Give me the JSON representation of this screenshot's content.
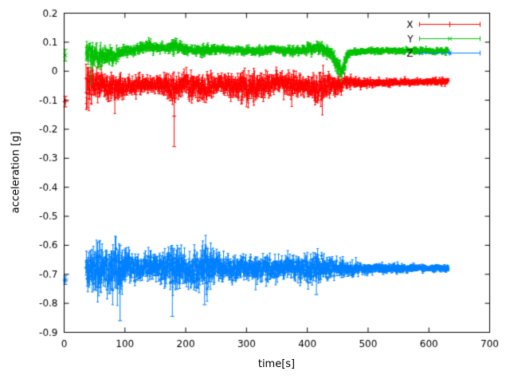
{
  "chart_data": {
    "type": "scatter",
    "style": "errorbars",
    "title": "",
    "xlabel": "time[s]",
    "ylabel": "acceleration [g]",
    "xlim": [
      0,
      700
    ],
    "ylim": [
      -0.9,
      0.2
    ],
    "xticks": [
      0,
      100,
      200,
      300,
      400,
      500,
      600,
      700
    ],
    "ytick_values": [
      -0.9,
      -0.8,
      -0.7,
      -0.6,
      -0.5,
      -0.4,
      -0.3,
      -0.2,
      -0.1,
      0,
      0.1,
      0.2
    ],
    "ytick_labels": [
      "-0.9",
      "-0.8",
      "-0.7",
      "-0.6",
      "-0.5",
      "-0.4",
      "-0.3",
      "-0.2",
      "-0.1",
      "0",
      "0.1",
      "0.2"
    ],
    "grid": false,
    "legend_position": "top-right",
    "series": [
      {
        "name": "X",
        "color": "#ff0000",
        "marker": "plus",
        "start_point": [
          2,
          -0.105,
          0.018
        ],
        "envelope": [
          [
            36,
            -0.055,
            0.075
          ],
          [
            48,
            -0.05,
            0.06
          ],
          [
            60,
            -0.048,
            0.05
          ],
          [
            75,
            -0.05,
            0.042
          ],
          [
            90,
            -0.05,
            0.05
          ],
          [
            105,
            -0.048,
            0.035
          ],
          [
            120,
            -0.05,
            0.032
          ],
          [
            135,
            -0.045,
            0.03
          ],
          [
            150,
            -0.042,
            0.032
          ],
          [
            165,
            -0.05,
            0.04
          ],
          [
            178,
            -0.06,
            0.055
          ],
          [
            186,
            -0.05,
            0.04
          ],
          [
            200,
            -0.048,
            0.045
          ],
          [
            215,
            -0.055,
            0.05
          ],
          [
            230,
            -0.06,
            0.05
          ],
          [
            245,
            -0.05,
            0.04
          ],
          [
            260,
            -0.042,
            0.03
          ],
          [
            275,
            -0.05,
            0.04
          ],
          [
            290,
            -0.058,
            0.048
          ],
          [
            305,
            -0.05,
            0.055
          ],
          [
            320,
            -0.055,
            0.05
          ],
          [
            335,
            -0.05,
            0.045
          ],
          [
            350,
            -0.04,
            0.035
          ],
          [
            365,
            -0.042,
            0.04
          ],
          [
            380,
            -0.045,
            0.05
          ],
          [
            395,
            -0.05,
            0.04
          ],
          [
            408,
            -0.055,
            0.045
          ],
          [
            418,
            -0.07,
            0.06
          ],
          [
            428,
            -0.05,
            0.05
          ],
          [
            440,
            -0.05,
            0.04
          ],
          [
            452,
            -0.048,
            0.035
          ],
          [
            462,
            -0.04,
            0.022
          ],
          [
            480,
            -0.04,
            0.018
          ],
          [
            510,
            -0.04,
            0.015
          ],
          [
            540,
            -0.038,
            0.013
          ],
          [
            570,
            -0.038,
            0.012
          ],
          [
            600,
            -0.036,
            0.012
          ],
          [
            632,
            -0.036,
            0.014
          ]
        ],
        "outliers": [
          [
            181,
            -0.26,
            -0.05
          ]
        ]
      },
      {
        "name": "Y",
        "color": "#00c000",
        "marker": "cross",
        "start_point": [
          2,
          0.055,
          0.02
        ],
        "envelope": [
          [
            36,
            0.065,
            0.05
          ],
          [
            45,
            0.055,
            0.045
          ],
          [
            55,
            0.05,
            0.04
          ],
          [
            65,
            0.055,
            0.035
          ],
          [
            75,
            0.05,
            0.032
          ],
          [
            85,
            0.055,
            0.03
          ],
          [
            95,
            0.065,
            0.022
          ],
          [
            110,
            0.072,
            0.018
          ],
          [
            125,
            0.08,
            0.018
          ],
          [
            140,
            0.085,
            0.02
          ],
          [
            155,
            0.082,
            0.018
          ],
          [
            170,
            0.08,
            0.016
          ],
          [
            182,
            0.088,
            0.026
          ],
          [
            195,
            0.078,
            0.016
          ],
          [
            210,
            0.072,
            0.016
          ],
          [
            225,
            0.07,
            0.02
          ],
          [
            240,
            0.075,
            0.016
          ],
          [
            255,
            0.076,
            0.014
          ],
          [
            270,
            0.075,
            0.013
          ],
          [
            285,
            0.072,
            0.014
          ],
          [
            300,
            0.07,
            0.015
          ],
          [
            315,
            0.068,
            0.016
          ],
          [
            330,
            0.072,
            0.014
          ],
          [
            345,
            0.075,
            0.013
          ],
          [
            360,
            0.07,
            0.015
          ],
          [
            375,
            0.068,
            0.014
          ],
          [
            390,
            0.072,
            0.018
          ],
          [
            405,
            0.075,
            0.02
          ],
          [
            418,
            0.08,
            0.022
          ],
          [
            432,
            0.07,
            0.022
          ],
          [
            442,
            0.055,
            0.028
          ],
          [
            450,
            0.02,
            0.035
          ],
          [
            456,
            -0.005,
            0.025
          ],
          [
            461,
            0.02,
            0.03
          ],
          [
            466,
            0.06,
            0.02
          ],
          [
            472,
            0.066,
            0.013
          ],
          [
            490,
            0.068,
            0.011
          ],
          [
            520,
            0.07,
            0.01
          ],
          [
            550,
            0.07,
            0.01
          ],
          [
            580,
            0.07,
            0.01
          ],
          [
            610,
            0.07,
            0.011
          ],
          [
            632,
            0.07,
            0.012
          ]
        ],
        "outliers": []
      },
      {
        "name": "Z",
        "color": "#0080ff",
        "marker": "asterisk",
        "start_point": [
          2,
          -0.72,
          0.015
        ],
        "envelope": [
          [
            36,
            -0.68,
            0.065
          ],
          [
            45,
            -0.69,
            0.085
          ],
          [
            55,
            -0.685,
            0.09
          ],
          [
            65,
            -0.68,
            0.08
          ],
          [
            75,
            -0.682,
            0.075
          ],
          [
            85,
            -0.68,
            0.09
          ],
          [
            95,
            -0.678,
            0.095
          ],
          [
            105,
            -0.675,
            0.06
          ],
          [
            115,
            -0.678,
            0.05
          ],
          [
            130,
            -0.68,
            0.045
          ],
          [
            145,
            -0.676,
            0.05
          ],
          [
            160,
            -0.675,
            0.052
          ],
          [
            175,
            -0.68,
            0.07
          ],
          [
            185,
            -0.682,
            0.08
          ],
          [
            195,
            -0.678,
            0.06
          ],
          [
            210,
            -0.68,
            0.065
          ],
          [
            225,
            -0.682,
            0.07
          ],
          [
            235,
            -0.68,
            0.075
          ],
          [
            250,
            -0.678,
            0.055
          ],
          [
            265,
            -0.676,
            0.048
          ],
          [
            280,
            -0.68,
            0.045
          ],
          [
            295,
            -0.677,
            0.04
          ],
          [
            310,
            -0.68,
            0.05
          ],
          [
            325,
            -0.678,
            0.042
          ],
          [
            340,
            -0.676,
            0.04
          ],
          [
            355,
            -0.68,
            0.045
          ],
          [
            370,
            -0.677,
            0.038
          ],
          [
            385,
            -0.676,
            0.04
          ],
          [
            400,
            -0.68,
            0.05
          ],
          [
            412,
            -0.68,
            0.055
          ],
          [
            425,
            -0.678,
            0.042
          ],
          [
            440,
            -0.679,
            0.032
          ],
          [
            455,
            -0.68,
            0.028
          ],
          [
            470,
            -0.68,
            0.024
          ],
          [
            490,
            -0.68,
            0.02
          ],
          [
            510,
            -0.68,
            0.018
          ],
          [
            530,
            -0.68,
            0.016
          ],
          [
            555,
            -0.68,
            0.014
          ],
          [
            580,
            -0.679,
            0.012
          ],
          [
            605,
            -0.679,
            0.01
          ],
          [
            632,
            -0.679,
            0.01
          ]
        ],
        "outliers": [
          [
            92,
            -0.86,
            -0.6
          ],
          [
            178,
            -0.845,
            -0.61
          ],
          [
            231,
            -0.805,
            -0.62
          ],
          [
            415,
            -0.77,
            -0.63
          ]
        ]
      }
    ]
  }
}
